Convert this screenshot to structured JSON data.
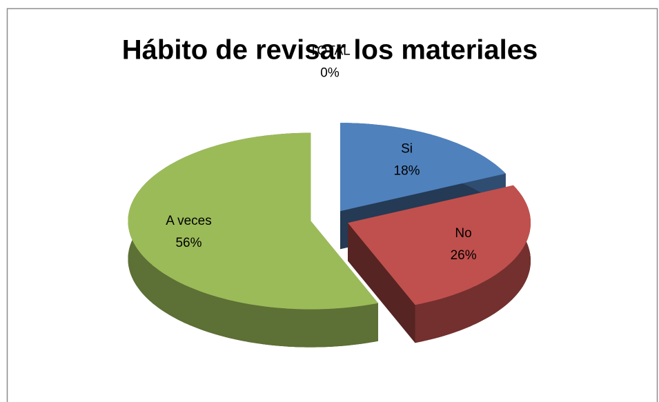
{
  "chart_data": {
    "type": "pie",
    "title": "Hábito de revisar los materiales",
    "categories": [
      "Si",
      "No",
      "A veces",
      "TOTAL"
    ],
    "values": [
      18,
      26,
      56,
      0
    ],
    "value_labels": [
      "18%",
      "26%",
      "56%",
      "0%"
    ],
    "colors": [
      "#4f81bd",
      "#c0504d",
      "#9bbb59",
      "#8064a2"
    ]
  }
}
